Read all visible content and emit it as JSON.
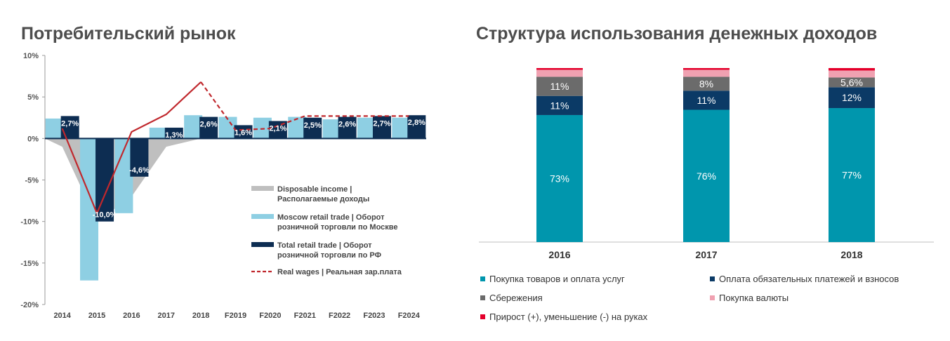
{
  "left": {
    "title": "Потребительский рынок",
    "chart_data": {
      "type": "bar",
      "categories": [
        "2014",
        "2015",
        "2016",
        "2017",
        "2018",
        "F2019",
        "F2020",
        "F2021",
        "F2022",
        "F2023",
        "F2024"
      ],
      "ylim": [
        -20,
        10
      ],
      "yticks": [
        "10%",
        "5%",
        "0%",
        "-5%",
        "-10%",
        "-15%",
        "-20%"
      ],
      "series": [
        {
          "name": "Disposable income | Располагаемые доходы",
          "kind": "area",
          "color": "#bfbfbf",
          "values": [
            -1,
            -10,
            -7,
            -1,
            0,
            0,
            0,
            0,
            0,
            0,
            0
          ]
        },
        {
          "name": "Moscow retail trade | Оборот розничной торговли по Москве",
          "kind": "bar",
          "color": "#8ecfe3",
          "values": [
            2.4,
            -17.1,
            -9.0,
            1.3,
            2.8,
            2.6,
            2.5,
            2.6,
            2.3,
            2.5,
            2.5
          ]
        },
        {
          "name": "Total retail trade | Оборот розничной торговли по РФ",
          "kind": "bar",
          "color": "#0d2d52",
          "values": [
            2.7,
            -10.0,
            -4.6,
            1.3,
            2.6,
            1.6,
            2.1,
            2.5,
            2.6,
            2.7,
            2.8
          ],
          "labels": [
            "2,7%",
            "-10,0%",
            "-4,6%",
            "1,3%",
            "2,6%",
            "1,6%",
            "2,1%",
            "2,5%",
            "2,6%",
            "2,7%",
            "2,8%"
          ]
        },
        {
          "name": "Real wages | Реальная зар.плата",
          "kind": "line",
          "color": "#c0282d",
          "values": [
            1.2,
            -9.0,
            0.8,
            2.9,
            6.8,
            1.0,
            1.2,
            2.7,
            2.7,
            2.7,
            2.7
          ]
        }
      ]
    }
  },
  "right": {
    "title": "Структура использования денежных доходов",
    "chart_data": {
      "type": "bar",
      "stacked": true,
      "categories": [
        "2016",
        "2017",
        "2018"
      ],
      "series": [
        {
          "name": "Покупка товаров и оплата услуг",
          "color": "#0096ad",
          "values": [
            73,
            76,
            77
          ],
          "labels": [
            "73%",
            "76%",
            "77%"
          ]
        },
        {
          "name": "Оплата обязательных платежей и взносов",
          "color": "#0b3a66",
          "values": [
            11,
            11,
            12
          ],
          "labels": [
            "11%",
            "11%",
            "12%"
          ]
        },
        {
          "name": "Сбережения",
          "color": "#6b6b6b",
          "values": [
            11,
            8,
            5.6
          ],
          "labels": [
            "11%",
            "8%",
            "5,6%"
          ]
        },
        {
          "name": "Покупка валюты",
          "color": "#f0a1b1",
          "values": [
            4,
            4,
            4
          ],
          "labels": [
            "",
            "",
            ""
          ]
        },
        {
          "name": "Прирост (+), уменьшение (-) на руках",
          "color": "#e4002b",
          "values": [
            1,
            1,
            1.4
          ],
          "labels": [
            "",
            "",
            ""
          ]
        }
      ]
    }
  }
}
